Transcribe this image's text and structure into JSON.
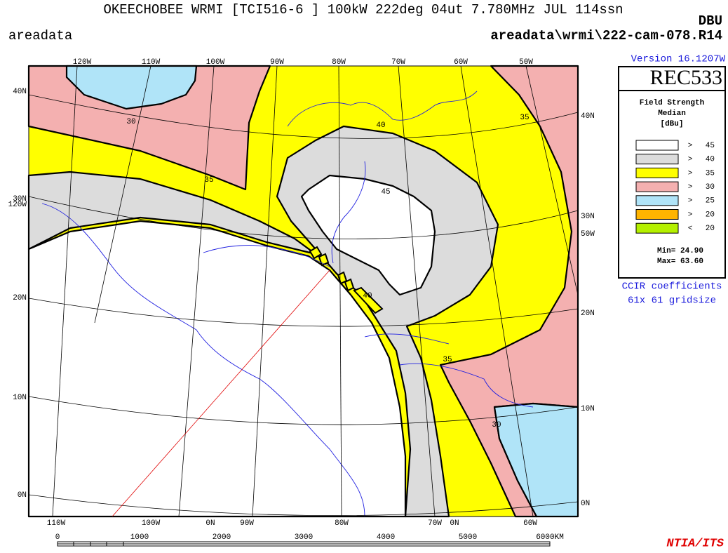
{
  "header": {
    "title": "OKEECHOBEE WRMI [TCI516-6 ] 100kW 222deg 04ut 7.780MHz JUL 114ssn",
    "units": "DBU",
    "left": "areadata",
    "file": "areadata\\wrmi\\222-cam-078.R14"
  },
  "version": "Version 16.1207W",
  "map": {
    "top_labels": [
      "120W",
      "110W",
      "100W",
      "90W",
      "80W",
      "70W",
      "60W",
      "50W"
    ],
    "left_labels": [
      "40N",
      "30N",
      "120W",
      "20N",
      "10N",
      "0N"
    ],
    "right_labels": [
      "40N",
      "30N",
      "50W",
      "20N",
      "10N",
      "0N"
    ],
    "bottom_labels": [
      "110W",
      "100W",
      "0N",
      "90W",
      "80W",
      "70W",
      "0N",
      "60W"
    ],
    "contour_labels": [
      "30",
      "35",
      "40",
      "45",
      "40",
      "35",
      "30",
      "35"
    ]
  },
  "legend": {
    "model": "REC533",
    "title": "Field Strength",
    "subtitle": "Median",
    "units": "[dBu]",
    "entries": [
      {
        "op": ">",
        "value": 45,
        "color": "#ffffff"
      },
      {
        "op": ">",
        "value": 40,
        "color": "#dcdcdc"
      },
      {
        "op": ">",
        "value": 35,
        "color": "#ffff00"
      },
      {
        "op": ">",
        "value": 30,
        "color": "#f4b0b0"
      },
      {
        "op": ">",
        "value": 25,
        "color": "#b0e4f8"
      },
      {
        "op": ">",
        "value": 20,
        "color": "#ffb400"
      },
      {
        "op": "<",
        "value": 20,
        "color": "#b4f000"
      }
    ],
    "min": "Min=  24.90",
    "max": "Max=  63.60"
  },
  "notes": [
    "CCIR coefficients",
    "61x 61 gridsize"
  ],
  "scale": {
    "labels": [
      "0",
      "1000",
      "2000",
      "3000",
      "4000",
      "5000",
      "6000KM"
    ]
  },
  "credit": "NTIA/ITS"
}
